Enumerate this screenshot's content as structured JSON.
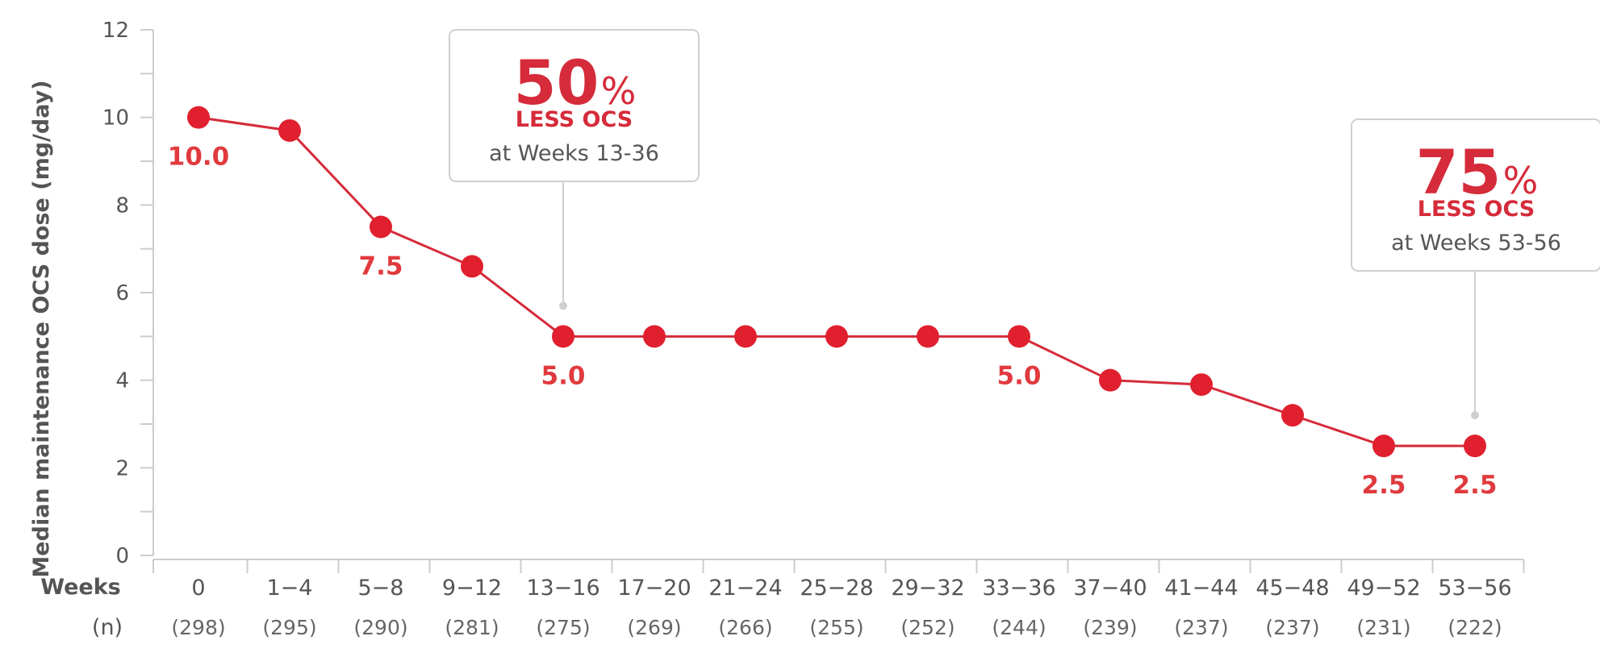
{
  "chart_data": {
    "type": "line",
    "ylabel": "Median maintenance OCS dose (mg/day)",
    "ylim": [
      0,
      12
    ],
    "y_ticks": [
      "0",
      "2",
      "4",
      "6",
      "8",
      "10",
      "12"
    ],
    "x_row_label": "Weeks",
    "n_row_label": "(n)",
    "categories": [
      "0",
      "1−4",
      "5−8",
      "9−12",
      "13−16",
      "17−20",
      "21−24",
      "25−28",
      "29−32",
      "33−36",
      "37−40",
      "41−44",
      "45−48",
      "49−52",
      "53−56"
    ],
    "n": [
      "(298)",
      "(295)",
      "(290)",
      "(281)",
      "(275)",
      "(269)",
      "(266)",
      "(255)",
      "(252)",
      "(244)",
      "(239)",
      "(237)",
      "(237)",
      "(231)",
      "(222)"
    ],
    "values": [
      10.0,
      9.7,
      7.5,
      6.6,
      5.0,
      5.0,
      5.0,
      5.0,
      5.0,
      5.0,
      4.0,
      3.9,
      3.2,
      2.5,
      2.5
    ],
    "data_labels": [
      {
        "index": 0,
        "text": "10.0"
      },
      {
        "index": 2,
        "text": "7.5"
      },
      {
        "index": 4,
        "text": "5.0"
      },
      {
        "index": 9,
        "text": "5.0"
      },
      {
        "index": 13,
        "text": "2.5"
      },
      {
        "index": 14,
        "text": "2.5"
      }
    ],
    "grid": false,
    "colors": {
      "line": "#d52b3a",
      "marker": "#e0202e",
      "label": "#e03a3e",
      "axis": "#cccccc"
    },
    "annotations": [
      {
        "value": "50",
        "unit": "%",
        "line1": "LESS OCS",
        "line2": "at Weeks 13-36",
        "anchor_index": 4,
        "anchor_value": 5.7
      },
      {
        "value": "75",
        "unit": "%",
        "line1": "LESS OCS",
        "line2": "at Weeks 53-56",
        "anchor_index": 14,
        "anchor_value": 3.2
      }
    ]
  }
}
